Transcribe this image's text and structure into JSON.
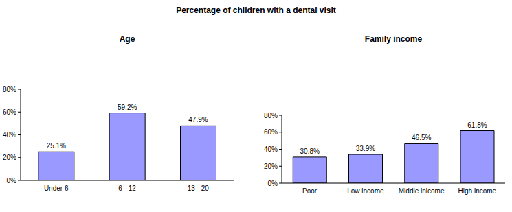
{
  "title": "Percentage of children with a dental visit",
  "chart_data": [
    {
      "type": "bar",
      "title": "Age",
      "categories": [
        "Under 6",
        "6 - 12",
        "13 - 20"
      ],
      "values": [
        25.1,
        59.2,
        47.9
      ],
      "value_labels": [
        "25.1%",
        "59.2%",
        "47.9%"
      ],
      "data_labels": true,
      "color": "#9999ff",
      "ylim": [
        0,
        80
      ],
      "yticks": [
        {
          "value": 0,
          "label": "0%"
        },
        {
          "value": 20,
          "label": "20%"
        },
        {
          "value": 40,
          "label": "40%"
        },
        {
          "value": 60,
          "label": "60%"
        },
        {
          "value": 80,
          "label": "80%"
        }
      ],
      "grid": false
    },
    {
      "type": "bar",
      "title": "Family income",
      "categories": [
        "Poor",
        "Low income",
        "Middle inicome",
        "High income"
      ],
      "values": [
        30.8,
        33.9,
        46.5,
        61.8
      ],
      "value_labels": [
        "30.8%",
        "33.9%",
        "46.5%",
        "61.8%"
      ],
      "data_labels": true,
      "color": "#9999ff",
      "ylim": [
        0,
        80
      ],
      "yticks": [
        {
          "value": 0,
          "label": "0%"
        },
        {
          "value": 20,
          "label": "20%"
        },
        {
          "value": 40,
          "label": "40%"
        },
        {
          "value": 60,
          "label": "60%"
        },
        {
          "value": 80,
          "label": "80%"
        }
      ],
      "grid": false
    }
  ]
}
